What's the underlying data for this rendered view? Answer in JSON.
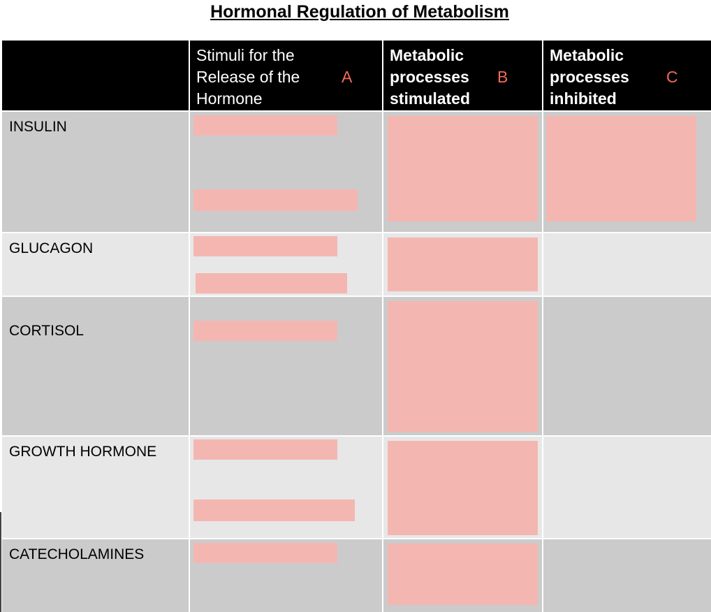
{
  "title": "Hormonal Regulation of Metabolism",
  "header": {
    "col_a_lines": [
      "Stimuli for the",
      "Release of the",
      "Hormone"
    ],
    "col_a_letter": "A",
    "col_b_lines": [
      "Metabolic",
      "processes",
      "stimulated"
    ],
    "col_b_letter": "B",
    "col_c_lines": [
      "Metabolic",
      "processes",
      "inhibited"
    ],
    "col_c_letter": "C"
  },
  "rows": [
    {
      "label": "INSULIN"
    },
    {
      "label": "GLUCAGON"
    },
    {
      "label": "CORTISOL"
    },
    {
      "label": "GROWTH HORMONE"
    },
    {
      "label": "CATECHOLAMINES"
    }
  ],
  "colors": {
    "header_bg": "#000000",
    "letter_accent": "#f26a5a",
    "row_dark": "#cbcbcb",
    "row_light": "#e7e7e7",
    "answer_box": "#f4b6b1"
  }
}
